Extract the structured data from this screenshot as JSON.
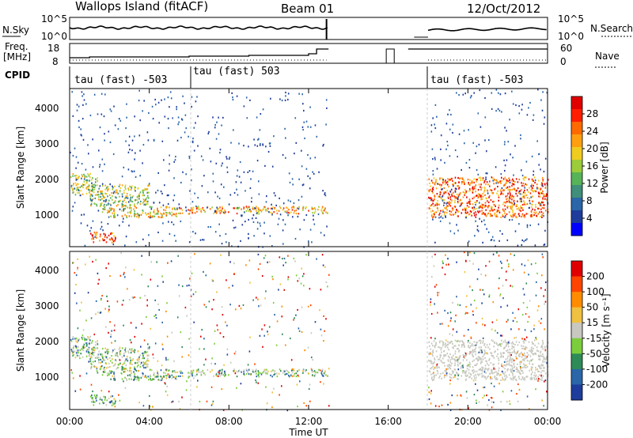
{
  "header": {
    "site": "Wallops Island (fitACF)",
    "beam": "Beam 01",
    "date": "12/Oct/2012"
  },
  "top_panels": {
    "nsky_label": "N.Sky",
    "nsearch_label": "N.Search",
    "noise_ticks_left": [
      "10^5",
      "10^0"
    ],
    "noise_ticks_right": [
      "10^5",
      "10^0"
    ],
    "freq_label_1": "Freq.",
    "freq_label_2": "[MHz]",
    "freq_ticks": [
      "18",
      "8"
    ],
    "nave_label": "Nave",
    "nave_ticks": [
      "60",
      "0"
    ],
    "cpid_label": "CPID",
    "cpid_segments": [
      {
        "label": "tau (fast) -503",
        "start_hour": 0
      },
      {
        "label": "tau (fast) 503",
        "start_hour": 6
      },
      {
        "label": "tau (fast) -503",
        "start_hour": 18
      }
    ]
  },
  "x_axis": {
    "label": "Time UT",
    "ticks": [
      "00:00",
      "04:00",
      "08:00",
      "12:00",
      "16:00",
      "20:00",
      "00:00"
    ]
  },
  "power_panel": {
    "ylabel": "Slant Range [km]",
    "yticks": [
      "4000",
      "3000",
      "2000",
      "1000"
    ],
    "colorbar_label": "Power [dB]",
    "colorbar_ticks": [
      "28",
      "24",
      "20",
      "16",
      "12",
      "8",
      "4"
    ],
    "colorbar_colors": [
      "#0000ff",
      "#1e3c9c",
      "#2a66a8",
      "#3f8f7a",
      "#57b357",
      "#9ccc3a",
      "#f0cc20",
      "#ff9f10",
      "#ff6a00",
      "#ff1e00",
      "#e00000"
    ]
  },
  "velocity_panel": {
    "ylabel": "Slant Range [km]",
    "yticks": [
      "4000",
      "3000",
      "2000",
      "1000"
    ],
    "colorbar_label": "Velocity [m s⁻¹]",
    "colorbar_ticks": [
      "200",
      "100",
      "50",
      "15",
      "-15",
      "-50",
      "-100",
      "-200"
    ],
    "colorbar_colors": [
      "#1e3c9c",
      "#2a66a8",
      "#2e8b57",
      "#7ccd3c",
      "#c8c8c0",
      "#f0c040",
      "#ff8c00",
      "#ff4500",
      "#e00000"
    ]
  },
  "chart_data": {
    "type": "heatmap",
    "title": "Wallops Island (fitACF)",
    "x": {
      "label": "Time UT",
      "range_hours": [
        0,
        24
      ]
    },
    "y": {
      "label": "Slant Range [km]",
      "range_km": [
        180,
        4500
      ]
    },
    "data_gap_hours": [
      13,
      18
    ],
    "scatter_bands_power": [
      {
        "t0": 0.0,
        "t1": 1.4,
        "r0": 1600,
        "r1": 2200,
        "level": "mid"
      },
      {
        "t0": 1.0,
        "t1": 4.0,
        "r0": 1300,
        "r1": 1900,
        "level": "mid"
      },
      {
        "t0": 1.5,
        "t1": 5.5,
        "r0": 1000,
        "r1": 1300,
        "level": "mid-high"
      },
      {
        "t0": 5.5,
        "t1": 13.0,
        "r0": 1100,
        "r1": 1300,
        "level": "high"
      },
      {
        "t0": 1.0,
        "t1": 2.3,
        "r0": 300,
        "r1": 600,
        "level": "very-high"
      },
      {
        "t0": 18.0,
        "t1": 24.0,
        "r0": 1000,
        "r1": 2100,
        "level": "very-high"
      }
    ]
  }
}
